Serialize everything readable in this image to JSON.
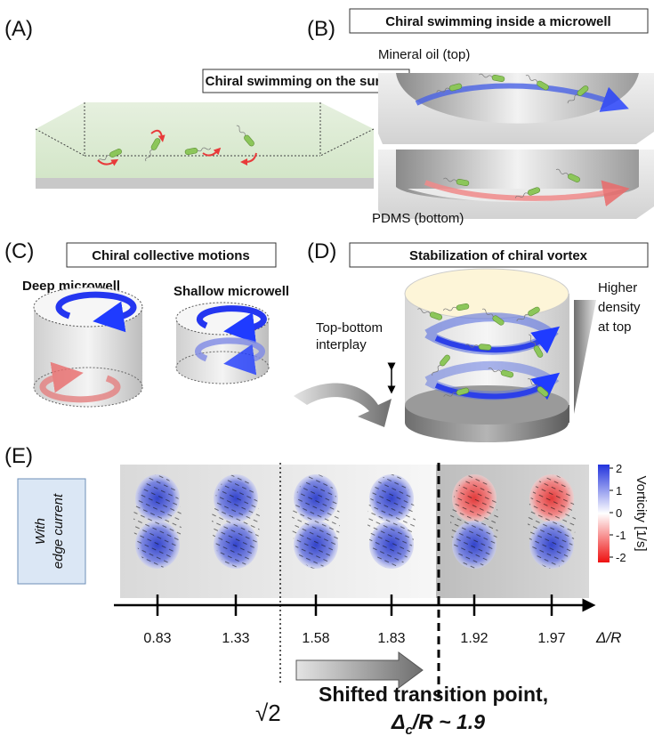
{
  "panels": {
    "a": {
      "label": "(A)",
      "title": "Chiral swimming on the surface"
    },
    "b": {
      "label": "(B)",
      "title": "Chiral swimming inside a microwell",
      "top_label": "Mineral oil (top)",
      "bottom_label": "PDMS (bottom)"
    },
    "c": {
      "label": "(C)",
      "title": "Chiral collective motions",
      "deep": "Deep microwell",
      "shallow": "Shallow microwell"
    },
    "d": {
      "label": "(D)",
      "title": "Stabilization of chiral vortex",
      "interplay": [
        "Top-bottom",
        "interplay"
      ],
      "density": [
        "Higher",
        "density",
        "at top"
      ]
    },
    "e": {
      "label": "(E)",
      "condition": [
        "With",
        "edge current"
      ],
      "axis_label": "Δ/R",
      "ticks": [
        0.83,
        1.33,
        1.58,
        1.83,
        1.92,
        1.97
      ],
      "colorbar": {
        "title": "Vorticity [1/s]",
        "ticks": [
          2,
          1,
          0,
          -1,
          -2
        ]
      },
      "sqrt2": "√2",
      "transition": {
        "line1": "Shifted transition point,",
        "symbol": "Δ",
        "subscript": "c",
        "rest": "/R ~ 1.9"
      }
    }
  }
}
